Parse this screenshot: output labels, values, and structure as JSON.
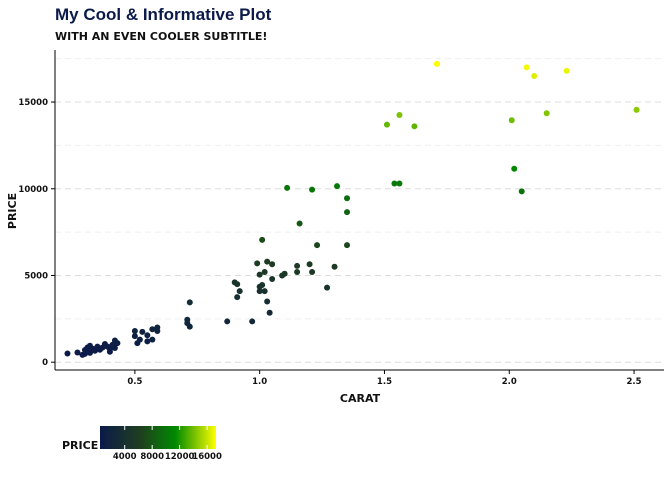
{
  "chart_data": {
    "type": "scatter",
    "title": "My Cool & Informative Plot",
    "subtitle": "WITH AN EVEN COOLER SUBTITLE!",
    "xlabel": "CARAT",
    "ylabel": "PRICE",
    "xlim": [
      0.18,
      2.62
    ],
    "ylim": [
      -450,
      18000
    ],
    "x_ticks": [
      0.5,
      1.0,
      1.5,
      2.0,
      2.5
    ],
    "x_tick_labels": [
      "0.5",
      "1.0",
      "1.5",
      "2.0",
      "2.5"
    ],
    "y_ticks": [
      0,
      5000,
      10000,
      15000
    ],
    "y_tick_labels": [
      "0",
      "5000",
      "10000",
      "15000"
    ],
    "y_minor_ticks": [
      2500,
      7500,
      12500,
      17500
    ],
    "grid": true,
    "color_scale": {
      "variable": "PRICE",
      "min": 400,
      "max": 17300,
      "colors": [
        "#0b1a4a",
        "#1f3f1f",
        "#008a00",
        "#ffff00"
      ],
      "breaks": [
        4000,
        8000,
        12000,
        16000
      ],
      "break_labels": [
        "4000",
        "8000",
        "12000",
        "16000"
      ],
      "legend_title": "PRICE",
      "legend_position": "bottom-left"
    },
    "points": [
      {
        "x": 0.23,
        "y": 500
      },
      {
        "x": 0.27,
        "y": 560
      },
      {
        "x": 0.29,
        "y": 420
      },
      {
        "x": 0.3,
        "y": 700
      },
      {
        "x": 0.3,
        "y": 480
      },
      {
        "x": 0.31,
        "y": 850
      },
      {
        "x": 0.31,
        "y": 620
      },
      {
        "x": 0.32,
        "y": 540
      },
      {
        "x": 0.32,
        "y": 950
      },
      {
        "x": 0.33,
        "y": 780
      },
      {
        "x": 0.34,
        "y": 660
      },
      {
        "x": 0.35,
        "y": 900
      },
      {
        "x": 0.36,
        "y": 720
      },
      {
        "x": 0.37,
        "y": 840
      },
      {
        "x": 0.38,
        "y": 1050
      },
      {
        "x": 0.39,
        "y": 900
      },
      {
        "x": 0.4,
        "y": 760
      },
      {
        "x": 0.4,
        "y": 600
      },
      {
        "x": 0.41,
        "y": 1000
      },
      {
        "x": 0.42,
        "y": 1250
      },
      {
        "x": 0.42,
        "y": 820
      },
      {
        "x": 0.43,
        "y": 1100
      },
      {
        "x": 0.5,
        "y": 1800
      },
      {
        "x": 0.5,
        "y": 1500
      },
      {
        "x": 0.51,
        "y": 1100
      },
      {
        "x": 0.52,
        "y": 1300
      },
      {
        "x": 0.53,
        "y": 1750
      },
      {
        "x": 0.55,
        "y": 1550
      },
      {
        "x": 0.55,
        "y": 1200
      },
      {
        "x": 0.57,
        "y": 1900
      },
      {
        "x": 0.57,
        "y": 1300
      },
      {
        "x": 0.59,
        "y": 2000
      },
      {
        "x": 0.59,
        "y": 1800
      },
      {
        "x": 0.71,
        "y": 2250
      },
      {
        "x": 0.71,
        "y": 2450
      },
      {
        "x": 0.72,
        "y": 2050
      },
      {
        "x": 0.72,
        "y": 3450
      },
      {
        "x": 0.87,
        "y": 2350
      },
      {
        "x": 0.9,
        "y": 4600
      },
      {
        "x": 0.91,
        "y": 4500
      },
      {
        "x": 0.91,
        "y": 3750
      },
      {
        "x": 0.92,
        "y": 4100
      },
      {
        "x": 0.97,
        "y": 2350
      },
      {
        "x": 0.99,
        "y": 5700
      },
      {
        "x": 1.0,
        "y": 5050
      },
      {
        "x": 1.0,
        "y": 4350
      },
      {
        "x": 1.0,
        "y": 4100
      },
      {
        "x": 1.01,
        "y": 7050
      },
      {
        "x": 1.01,
        "y": 4450
      },
      {
        "x": 1.02,
        "y": 4100
      },
      {
        "x": 1.02,
        "y": 5200
      },
      {
        "x": 1.03,
        "y": 5800
      },
      {
        "x": 1.03,
        "y": 3500
      },
      {
        "x": 1.04,
        "y": 2850
      },
      {
        "x": 1.05,
        "y": 5650
      },
      {
        "x": 1.05,
        "y": 4800
      },
      {
        "x": 1.09,
        "y": 5000
      },
      {
        "x": 1.1,
        "y": 5100
      },
      {
        "x": 1.11,
        "y": 10050
      },
      {
        "x": 1.15,
        "y": 5550
      },
      {
        "x": 1.15,
        "y": 5200
      },
      {
        "x": 1.16,
        "y": 8000
      },
      {
        "x": 1.2,
        "y": 5650
      },
      {
        "x": 1.21,
        "y": 9950
      },
      {
        "x": 1.21,
        "y": 5200
      },
      {
        "x": 1.23,
        "y": 6750
      },
      {
        "x": 1.27,
        "y": 4300
      },
      {
        "x": 1.3,
        "y": 5500
      },
      {
        "x": 1.31,
        "y": 10150
      },
      {
        "x": 1.35,
        "y": 9450
      },
      {
        "x": 1.35,
        "y": 8650
      },
      {
        "x": 1.35,
        "y": 6750
      },
      {
        "x": 1.51,
        "y": 13700
      },
      {
        "x": 1.54,
        "y": 10300
      },
      {
        "x": 1.56,
        "y": 14250
      },
      {
        "x": 1.56,
        "y": 10300
      },
      {
        "x": 1.62,
        "y": 13600
      },
      {
        "x": 1.71,
        "y": 17200
      },
      {
        "x": 2.01,
        "y": 13950
      },
      {
        "x": 2.02,
        "y": 11150
      },
      {
        "x": 2.05,
        "y": 9850
      },
      {
        "x": 2.07,
        "y": 17000
      },
      {
        "x": 2.1,
        "y": 16500
      },
      {
        "x": 2.15,
        "y": 14350
      },
      {
        "x": 2.23,
        "y": 16800
      },
      {
        "x": 2.51,
        "y": 14550
      }
    ]
  }
}
